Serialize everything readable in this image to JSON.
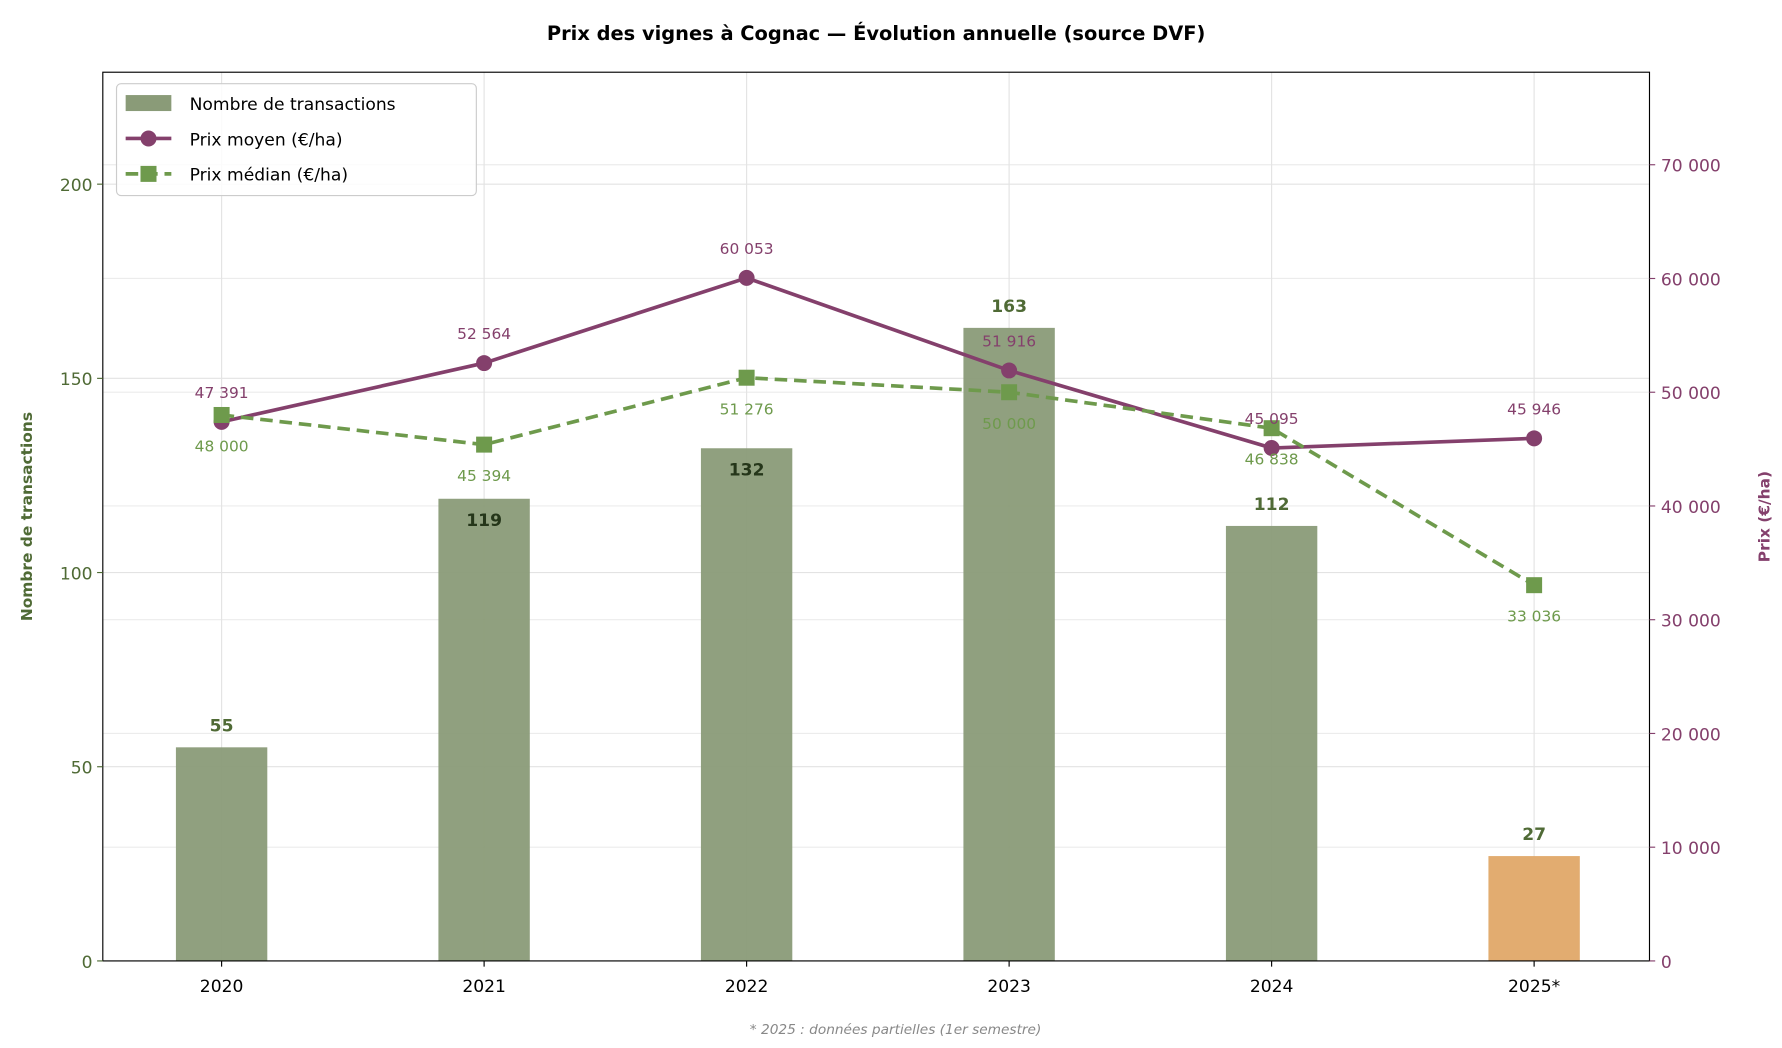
{
  "chart_data": {
    "type": "bar+line",
    "title": "Prix des vignes à Cognac — Évolution annuelle (source DVF)",
    "footnote": "* 2025 : données partielles (1er semestre)",
    "categories": [
      "2020",
      "2021",
      "2022",
      "2023",
      "2024",
      "2025*"
    ],
    "ylabel_left": "Nombre de transactions",
    "ylabel_right": "Prix (€/ha)",
    "ylim_left": [
      0,
      229
    ],
    "ylim_right": [
      0,
      78000
    ],
    "yticks_left": [
      "0",
      "50",
      "100",
      "150",
      "200"
    ],
    "yticks_right": [
      "0",
      "10 000",
      "20 000",
      "30 000",
      "40 000",
      "50 000",
      "60 000",
      "70 000"
    ],
    "grid": true,
    "legend_position": "top-left",
    "series": [
      {
        "name": "Nombre de transactions",
        "type": "bar",
        "axis": "left",
        "values": [
          55,
          119,
          132,
          163,
          112,
          27
        ],
        "labels": [
          "55",
          "119",
          "132",
          "163",
          "112",
          "27"
        ],
        "color": "#8a9b78",
        "partial_color": "#e0a868"
      },
      {
        "name": "Prix moyen (€/ha)",
        "type": "line",
        "axis": "right",
        "marker": "circle",
        "values": [
          47391,
          52564,
          60053,
          51916,
          45095,
          45946
        ],
        "labels": [
          "47 391",
          "52 564",
          "60 053",
          "51 916",
          "45 095",
          "45 946"
        ],
        "color": "#84406c"
      },
      {
        "name": "Prix médian (€/ha)",
        "type": "line",
        "axis": "right",
        "marker": "square",
        "dashed": true,
        "values": [
          48000,
          45394,
          51276,
          50000,
          46838,
          33036
        ],
        "labels": [
          "48 000",
          "45 394",
          "51 276",
          "50 000",
          "46 838",
          "33 036"
        ],
        "color": "#6e9a4c"
      }
    ],
    "left_axis_color": "#4f6a35",
    "right_axis_color": "#84406c"
  }
}
